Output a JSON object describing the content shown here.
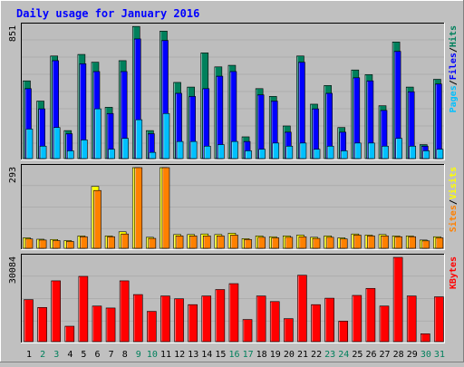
{
  "title": "Daily usage for January 2016",
  "colors": {
    "background": "#c0c0c0",
    "panel": "#bdbdbd",
    "grid": "#a8a8a8",
    "title": "#0000ff",
    "hits": "#00805c",
    "files": "#0000ff",
    "pages": "#00c0ff",
    "visits": "#ffff00",
    "sites": "#ff8000",
    "kbytes": "#ff0000",
    "day_weekday": "#000000",
    "day_weekend": "#00805c"
  },
  "chart_data": [
    {
      "type": "bar",
      "panel": "hits-files-pages",
      "ymax_label": "851",
      "ylim": [
        0,
        851
      ],
      "legend": [
        "Pages",
        "/",
        "Files",
        "/",
        "Hits"
      ],
      "categories": [
        "1",
        "2",
        "3",
        "4",
        "5",
        "6",
        "7",
        "8",
        "9",
        "10",
        "11",
        "12",
        "13",
        "14",
        "15",
        "16",
        "17",
        "18",
        "19",
        "20",
        "21",
        "22",
        "23",
        "24",
        "25",
        "26",
        "27",
        "28",
        "29",
        "30",
        "31"
      ],
      "series": [
        {
          "name": "Hits",
          "values": [
            500,
            370,
            660,
            180,
            670,
            620,
            330,
            630,
            850,
            180,
            820,
            490,
            460,
            680,
            590,
            600,
            140,
            450,
            400,
            210,
            660,
            350,
            470,
            200,
            570,
            540,
            340,
            750,
            460,
            90,
            510
          ]
        },
        {
          "name": "Files",
          "values": [
            450,
            320,
            630,
            160,
            610,
            560,
            290,
            560,
            770,
            160,
            760,
            420,
            400,
            450,
            530,
            560,
            110,
            410,
            370,
            170,
            620,
            320,
            420,
            170,
            520,
            500,
            310,
            690,
            430,
            80,
            480
          ]
        },
        {
          "name": "Pages",
          "values": [
            190,
            80,
            200,
            50,
            120,
            320,
            60,
            130,
            250,
            40,
            290,
            110,
            110,
            80,
            90,
            110,
            50,
            60,
            100,
            80,
            100,
            60,
            80,
            50,
            100,
            100,
            80,
            130,
            80,
            50,
            60
          ]
        }
      ]
    },
    {
      "type": "bar",
      "panel": "visits-sites",
      "ymax_label": "293",
      "ylim": [
        0,
        293
      ],
      "legend": [
        "Sites",
        "/",
        "Visits"
      ],
      "categories": [
        "1",
        "2",
        "3",
        "4",
        "5",
        "6",
        "7",
        "8",
        "9",
        "10",
        "11",
        "12",
        "13",
        "14",
        "15",
        "16",
        "17",
        "18",
        "19",
        "20",
        "21",
        "22",
        "23",
        "24",
        "25",
        "26",
        "27",
        "28",
        "29",
        "30",
        "31"
      ],
      "series": [
        {
          "name": "Visits",
          "values": [
            38,
            33,
            32,
            28,
            45,
            225,
            45,
            60,
            293,
            40,
            293,
            50,
            50,
            52,
            50,
            55,
            35,
            45,
            42,
            45,
            48,
            40,
            45,
            38,
            52,
            48,
            50,
            45,
            45,
            30,
            42
          ]
        },
        {
          "name": "Sites",
          "values": [
            34,
            30,
            28,
            25,
            42,
            210,
            42,
            52,
            293,
            36,
            293,
            45,
            45,
            45,
            45,
            48,
            32,
            40,
            38,
            40,
            42,
            36,
            40,
            34,
            48,
            45,
            45,
            42,
            42,
            27,
            38
          ]
        }
      ]
    },
    {
      "type": "bar",
      "panel": "kbytes",
      "ymax_label": "30084",
      "ylim": [
        0,
        30084
      ],
      "legend": [
        "KBytes"
      ],
      "categories": [
        "1",
        "2",
        "3",
        "4",
        "5",
        "6",
        "7",
        "8",
        "9",
        "10",
        "11",
        "12",
        "13",
        "14",
        "15",
        "16",
        "17",
        "18",
        "19",
        "20",
        "21",
        "22",
        "23",
        "24",
        "25",
        "26",
        "27",
        "28",
        "29",
        "30",
        "31"
      ],
      "series": [
        {
          "name": "KBytes",
          "values": [
            15000,
            12200,
            21700,
            5500,
            23300,
            12700,
            12000,
            21700,
            16800,
            10800,
            16300,
            15300,
            13200,
            16300,
            18600,
            20700,
            7900,
            16300,
            14300,
            8200,
            23700,
            13200,
            15500,
            7300,
            16500,
            19000,
            12700,
            30084,
            16300,
            2800,
            16000
          ]
        }
      ]
    }
  ]
}
